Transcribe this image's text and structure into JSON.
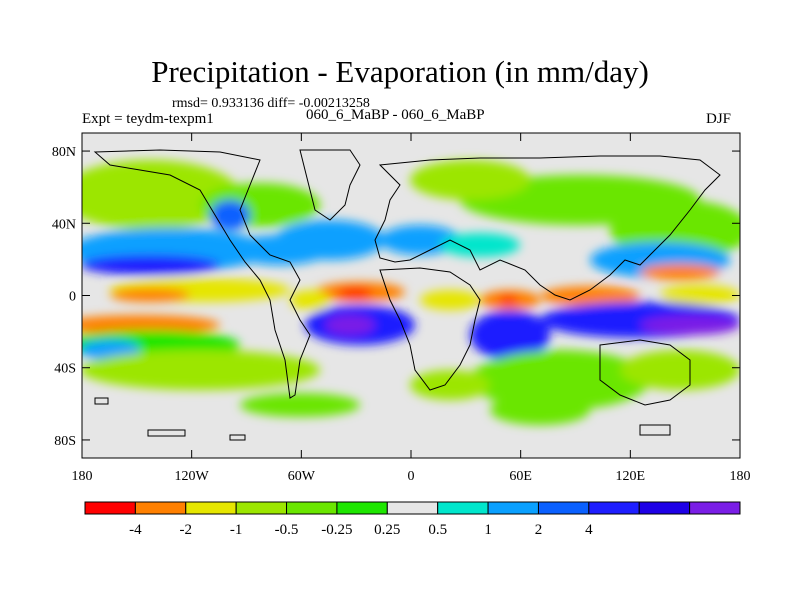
{
  "title": "Precipitation - Evaporation (in mm/day)",
  "stats_text": "rmsd= 0.933136 diff= -0.00213258",
  "experiment_label": "Expt = teydm-texpm1",
  "center_label": "060_6_MaBP - 060_6_MaBP",
  "season": "DJF",
  "map": {
    "x_ticks": [
      "180",
      "120W",
      "60W",
      "0",
      "60E",
      "120E",
      "180"
    ],
    "y_ticks": [
      "80N",
      "40N",
      "0",
      "40S",
      "80S"
    ],
    "background_color": "#e6e6e6"
  },
  "colorbar": {
    "colors": [
      "#ff0000",
      "#ff8000",
      "#e6e600",
      "#9ce600",
      "#6ae600",
      "#1ee600",
      "#e6e6e6",
      "#00e6cc",
      "#0aa0ff",
      "#0a60ff",
      "#1e1eff",
      "#1e00e6",
      "#7a1ee6"
    ],
    "labels": [
      "-4",
      "-2",
      "-1",
      "-0.5",
      "-0.25",
      "0.25",
      "0.5",
      "1",
      "2",
      "4"
    ]
  }
}
